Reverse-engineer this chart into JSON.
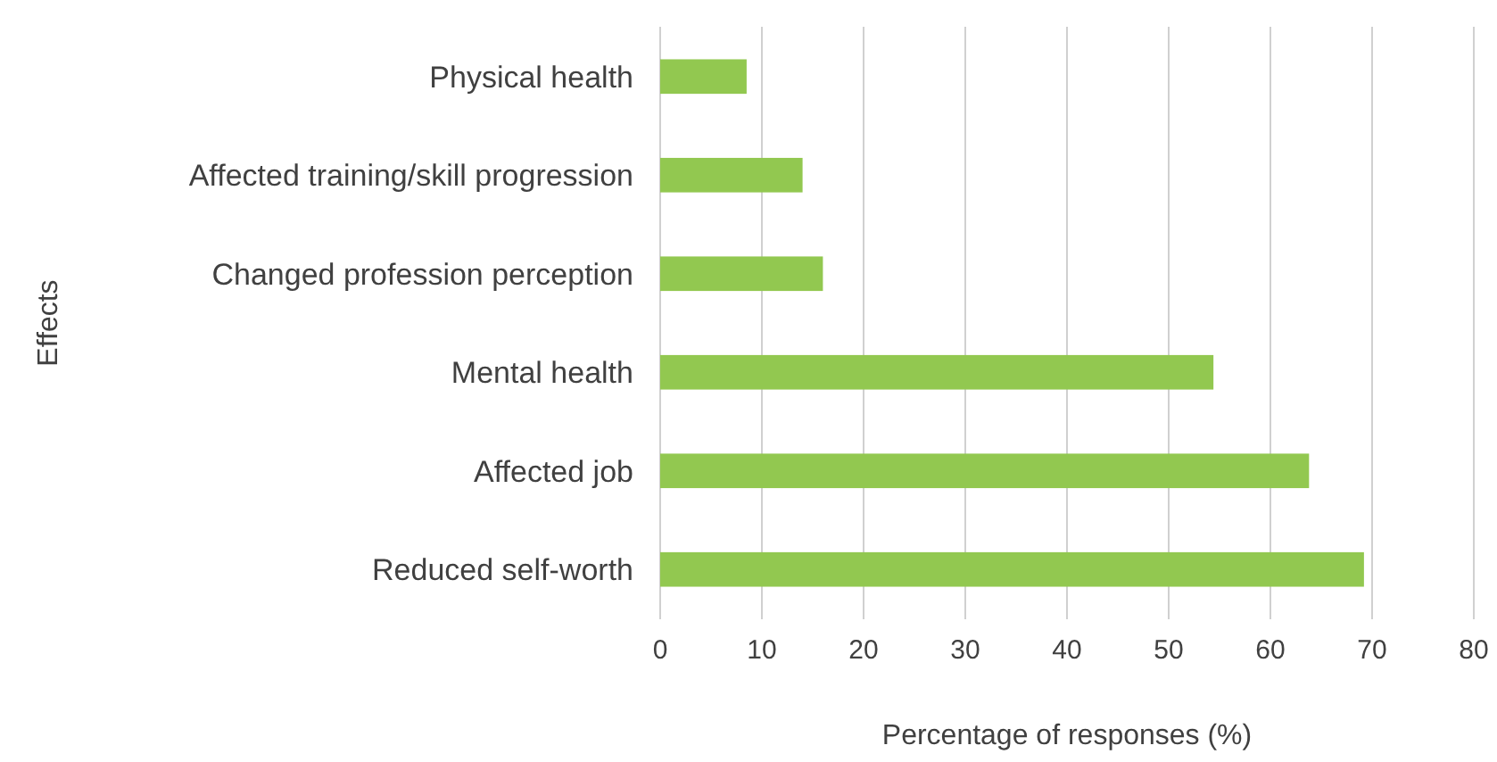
{
  "chart_data": {
    "type": "bar",
    "orientation": "horizontal",
    "xlabel": "Percentage of responses (%)",
    "ylabel": "Effects",
    "categories": [
      "Physical health",
      "Affected training/skill progression",
      "Changed profession perception",
      "Mental health",
      "Affected job",
      "Reduced self-worth"
    ],
    "values": [
      8.5,
      14,
      16,
      54.4,
      63.8,
      69.2
    ],
    "color": "#92c850",
    "xlim": [
      0,
      80
    ],
    "xticks": [
      0,
      10,
      20,
      30,
      40,
      50,
      60,
      70,
      80
    ],
    "grid": "x"
  }
}
